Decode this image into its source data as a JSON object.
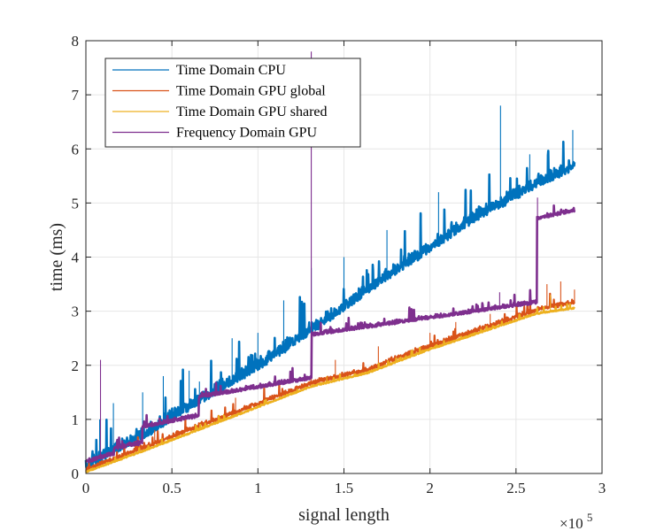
{
  "chart_data": {
    "type": "line",
    "xlabel": "signal length",
    "ylabel": "time (ms)",
    "x_multiplier_base": "×10",
    "x_multiplier_exp": "5",
    "xlim": [
      0,
      300000
    ],
    "ylim": [
      0,
      8
    ],
    "x_ticks": [
      0,
      50000,
      100000,
      150000,
      200000,
      250000,
      300000
    ],
    "x_tick_labels": [
      "0",
      "0.5",
      "1",
      "1.5",
      "2",
      "2.5",
      "3"
    ],
    "y_ticks": [
      0,
      1,
      2,
      3,
      4,
      5,
      6,
      7,
      8
    ],
    "y_tick_labels": [
      "0",
      "1",
      "2",
      "3",
      "4",
      "5",
      "6",
      "7",
      "8"
    ],
    "grid": true,
    "legend_position": "top-left",
    "series": [
      {
        "name": "Time Domain CPU",
        "color": "#0072BD",
        "x": [
          0,
          16384,
          32768,
          65536,
          98304,
          131072,
          163840,
          196608,
          229376,
          262144,
          284000
        ],
        "y": [
          0.05,
          0.4,
          0.65,
          1.3,
          1.9,
          2.6,
          3.35,
          4.05,
          4.75,
          5.3,
          5.65
        ],
        "spikes": [
          [
            8000,
            1.0
          ],
          [
            16000,
            1.3
          ],
          [
            33000,
            1.5
          ],
          [
            45000,
            1.8
          ],
          [
            60000,
            1.9
          ],
          [
            66000,
            1.7
          ],
          [
            85000,
            2.5
          ],
          [
            100000,
            2.6
          ],
          [
            115000,
            3.2
          ],
          [
            131000,
            3.8
          ],
          [
            150000,
            4.0
          ],
          [
            175000,
            4.5
          ],
          [
            195000,
            4.8
          ],
          [
            205000,
            5.2
          ],
          [
            241000,
            6.8
          ],
          [
            258000,
            5.9
          ],
          [
            283000,
            6.35
          ]
        ]
      },
      {
        "name": "Time Domain GPU global",
        "color": "#D95319",
        "x": [
          0,
          32768,
          65536,
          98304,
          131072,
          163840,
          196608,
          229376,
          262144,
          284000
        ],
        "y": [
          0.05,
          0.45,
          0.85,
          1.25,
          1.65,
          1.9,
          2.3,
          2.65,
          3.0,
          3.15
        ],
        "spikes": [
          [
            40000,
            0.8
          ],
          [
            87000,
            1.4
          ],
          [
            131000,
            1.95
          ],
          [
            145000,
            2.1
          ],
          [
            170000,
            2.35
          ],
          [
            200000,
            2.6
          ],
          [
            215000,
            2.8
          ],
          [
            235000,
            2.95
          ],
          [
            255000,
            3.2
          ],
          [
            268000,
            3.5
          ],
          [
            276000,
            3.55
          ],
          [
            284000,
            3.4
          ]
        ]
      },
      {
        "name": "Time Domain GPU shared",
        "color": "#EDB120",
        "x": [
          0,
          32768,
          65536,
          98304,
          131072,
          163840,
          196608,
          229376,
          262144,
          284000
        ],
        "y": [
          0.02,
          0.4,
          0.8,
          1.2,
          1.6,
          1.85,
          2.25,
          2.6,
          2.95,
          3.05
        ],
        "spikes": [
          [
            80000,
            1.1
          ],
          [
            140000,
            1.8
          ],
          [
            190000,
            2.3
          ],
          [
            270000,
            3.3
          ]
        ]
      },
      {
        "name": "Frequency Domain  GPU",
        "color": "#7E2F8E",
        "x": [
          0,
          16384,
          16385,
          32768,
          32769,
          65536,
          65537,
          131072,
          131073,
          262144,
          262145,
          284000
        ],
        "y": [
          0.2,
          0.35,
          0.45,
          0.55,
          0.85,
          1.05,
          1.4,
          1.75,
          2.55,
          3.15,
          4.7,
          4.85
        ],
        "spikes": [
          [
            8500,
            2.1
          ],
          [
            131000,
            7.8
          ],
          [
            240500,
            3.35
          ],
          [
            262500,
            5.1
          ]
        ]
      }
    ]
  }
}
